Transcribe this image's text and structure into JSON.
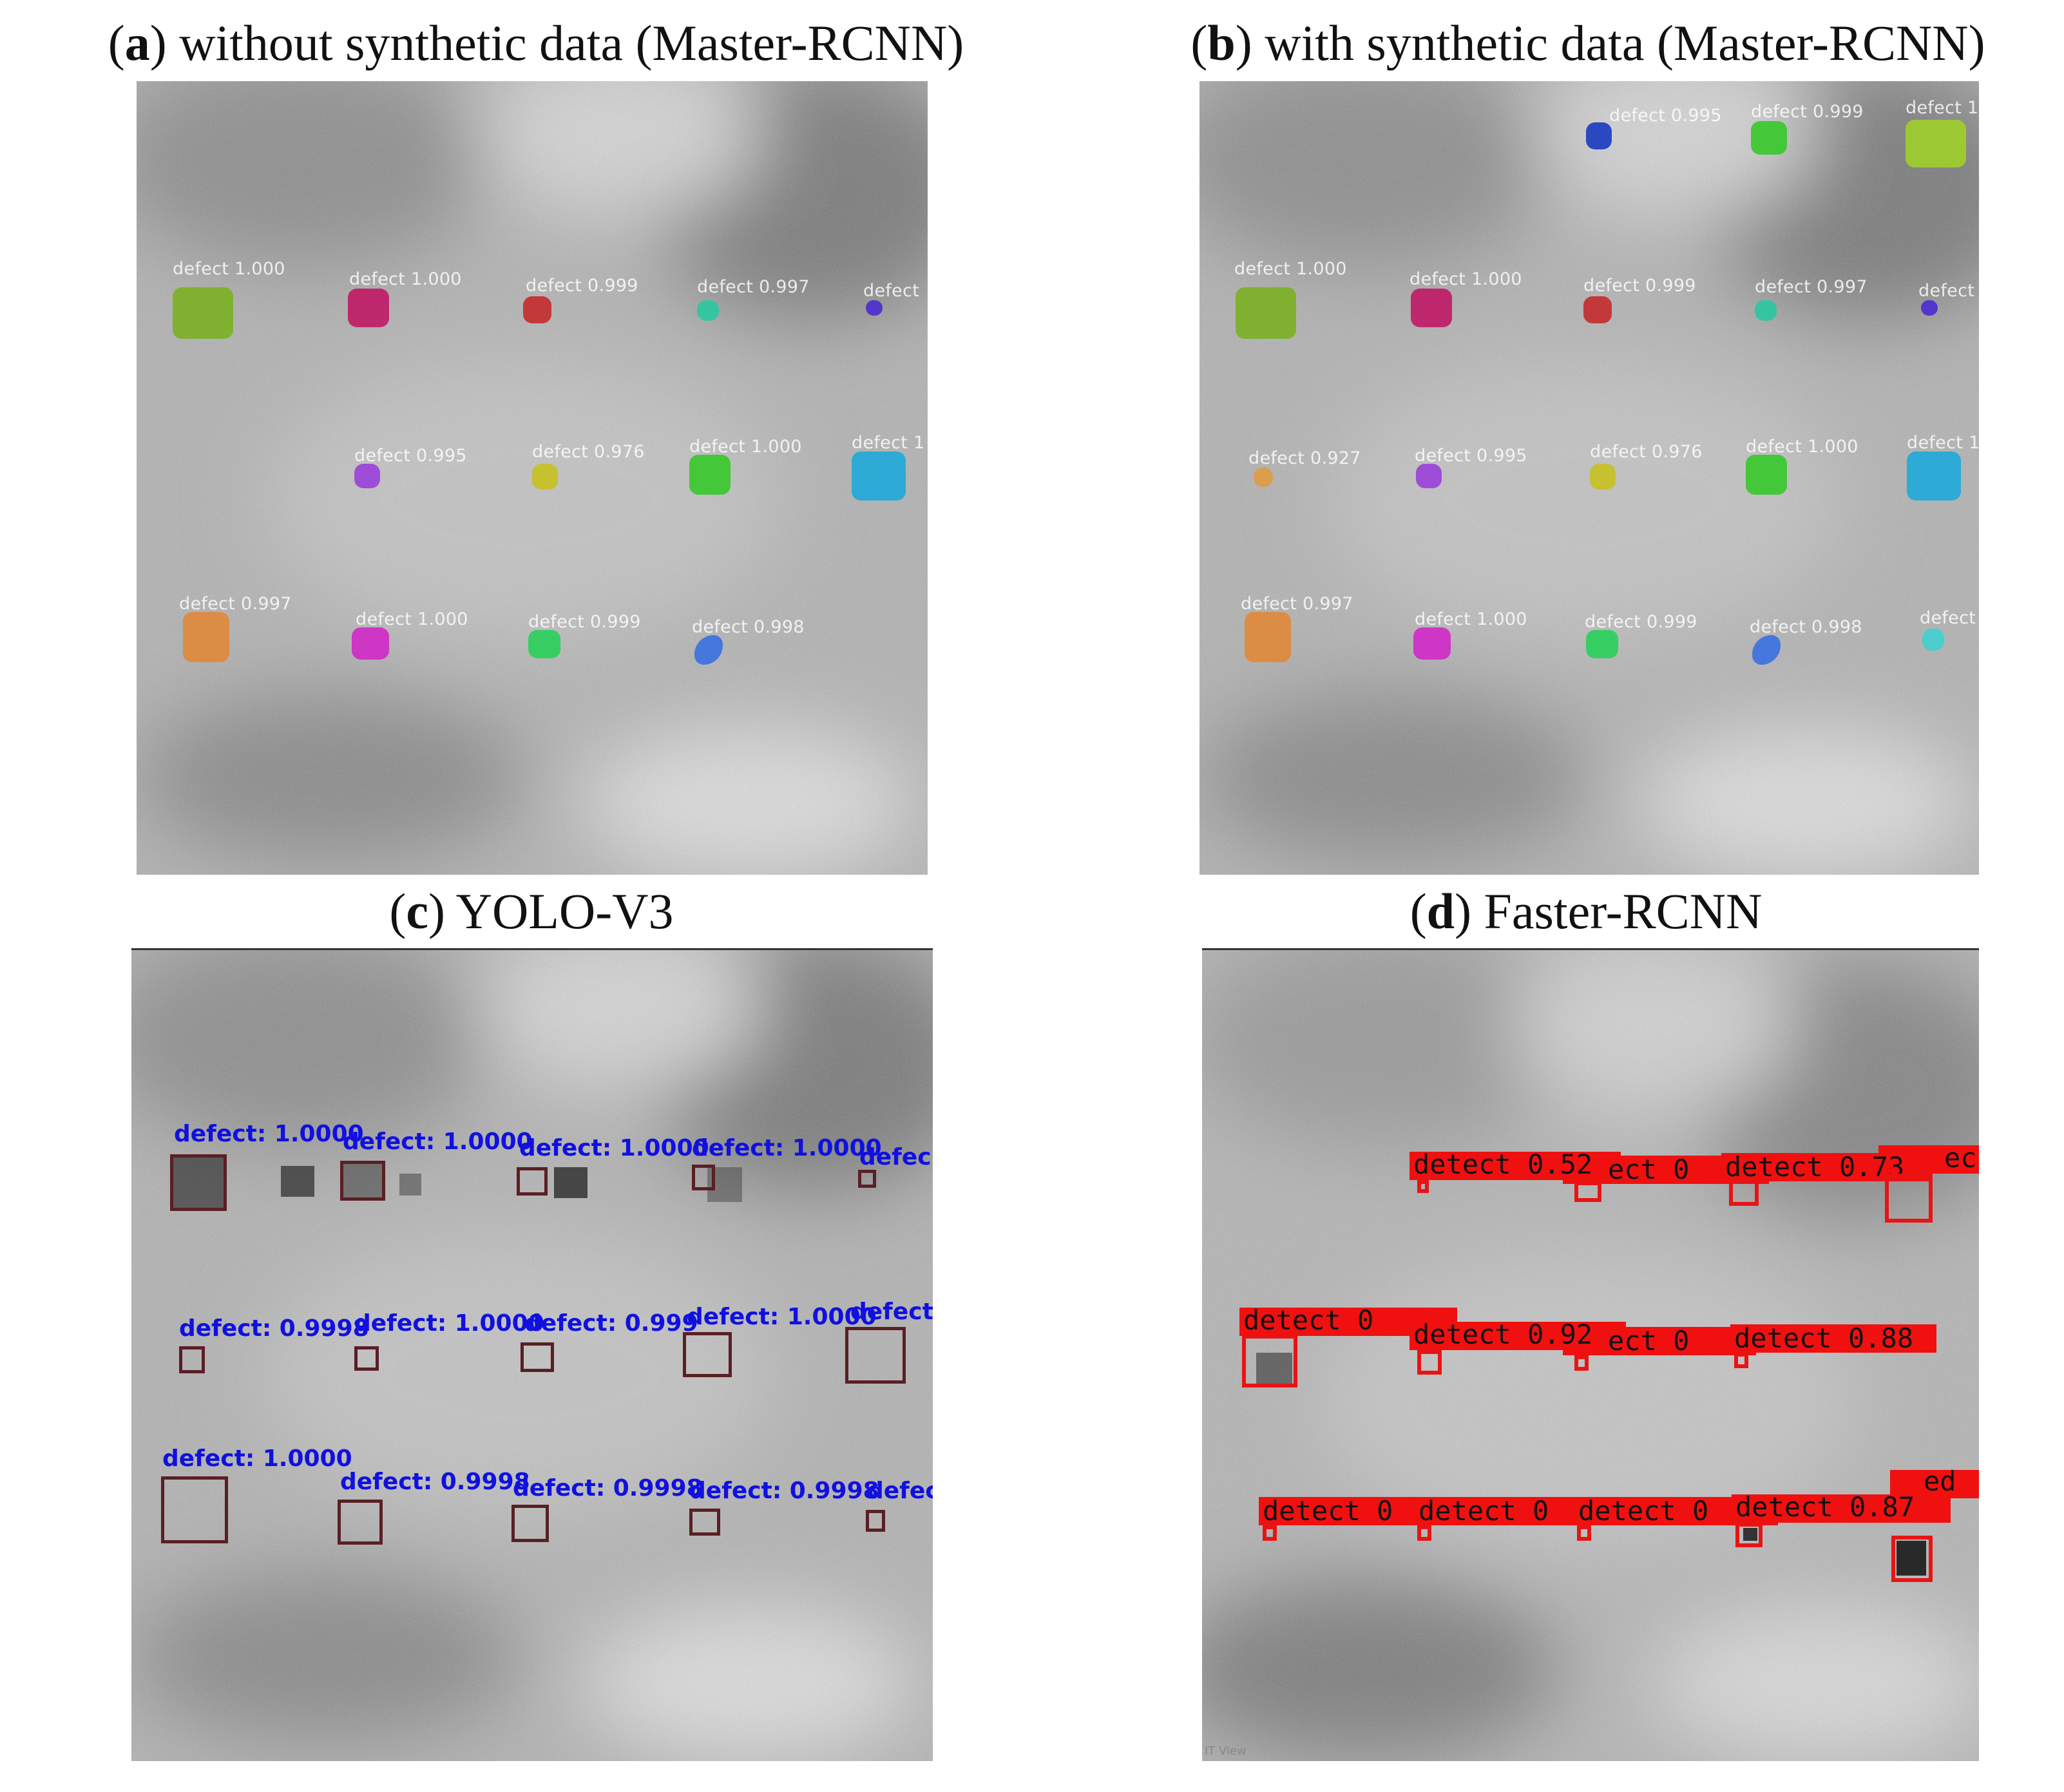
{
  "captions": {
    "a": {
      "letter": "a",
      "text": "without synthetic data (Master-RCNN)"
    },
    "b": {
      "letter": "b",
      "text": "with synthetic data (Master-RCNN)"
    },
    "c": {
      "letter": "c",
      "text": "YOLO-V3"
    },
    "d": {
      "letter": "d",
      "text": "Faster-RCNN"
    }
  },
  "panel_a": {
    "labels": [
      "defect 1.000",
      "defect 1.000",
      "defect 0.999",
      "defect 0.997",
      "defect",
      "defect 0.995",
      "defect 0.976",
      "defect 1.000",
      "defect 1",
      "defect 0.997",
      "defect 1.000",
      "defect 0.999",
      "defect 0.998"
    ],
    "mask_colors": [
      "#7ab022",
      "#c01864",
      "#c42a2a",
      "#2ac8a0",
      "#4a2ad0",
      "#9a40d8",
      "#c8c020",
      "#36c82a",
      "#1ea8d8",
      "#e08838",
      "#d028c8",
      "#28d05a",
      "#3a70e0"
    ]
  },
  "panel_b": {
    "labels": [
      "defect 0.995",
      "defect 0.999",
      "defect 1",
      "defect 1.000",
      "defect 1.000",
      "defect 0.999",
      "defect 0.997",
      "defect",
      "defect 0.927",
      "defect 0.995",
      "defect 0.976",
      "defect 1.000",
      "defect 1",
      "defect 0.997",
      "defect 1.000",
      "defect 0.999",
      "defect 0.998",
      "defect"
    ],
    "mask_colors": [
      "#1a3ac0",
      "#36c82a",
      "#9ed02a",
      "#7ab022",
      "#c01864",
      "#c42a2a",
      "#2ac8a0",
      "#4a2ad0",
      "#e09a40",
      "#9a40d8",
      "#c8c020",
      "#36c82a",
      "#1ea8d8",
      "#e08838",
      "#d028c8",
      "#28d05a",
      "#3a70e0",
      "#40d0d0"
    ]
  },
  "panel_c": {
    "labels": [
      "defect: 1.0000",
      "defect: 1.0000",
      "defect: 1.0000",
      "defect: 1.0000",
      "defec",
      "defect: 0.9998",
      "defect: 1.0000",
      "defect: 0.999",
      "defect: 1.0000",
      "defect:",
      "defect: 1.0000",
      "defect: 0.9998",
      "defect: 0.9998",
      "defect: 0.9998",
      "defec"
    ]
  },
  "panel_d": {
    "labels": [
      "detect 0.52",
      "ect 0",
      "detect 0.73",
      "ec",
      "detect 0",
      "detect 0.92",
      "ect 0",
      "detect 0.88",
      "detect 0",
      "detect 0",
      "detect 0",
      "detect 0.87",
      "ed"
    ],
    "corner_text": "IT View"
  }
}
